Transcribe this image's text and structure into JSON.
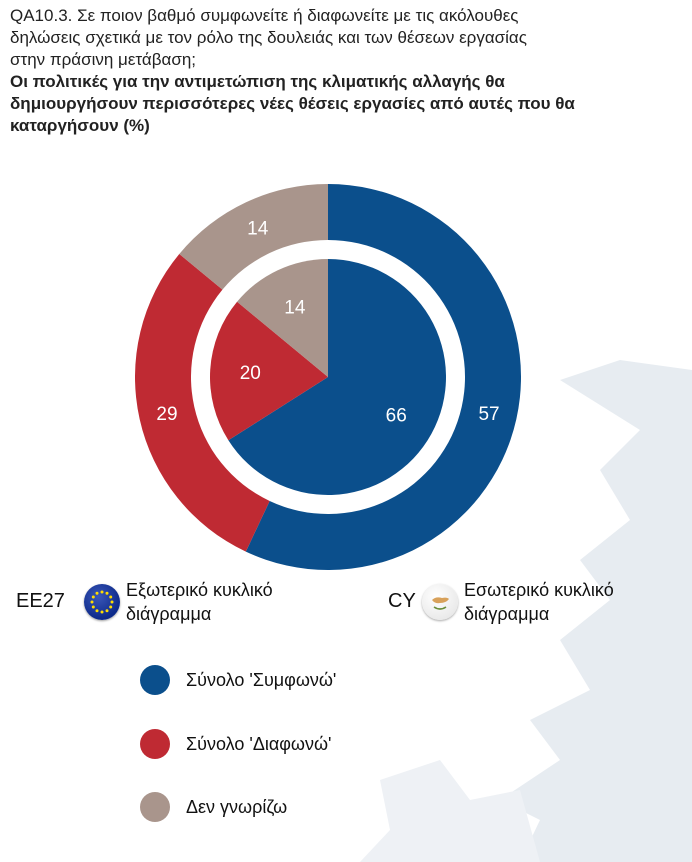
{
  "question": {
    "lines": [
      "QA10.3. Σε ποιον βαθμό συμφωνείτε ή διαφωνείτε με τις ακόλουθες",
      "δηλώσεις σχετικά με τον ρόλο της δουλειάς και των θέσεων εργασίας",
      "στην πράσινη μετάβαση;"
    ],
    "bold_lines": [
      "Οι πολιτικές για την αντιμετώπιση της κλιματικής αλλαγής θα",
      "δημιουργήσουν περισσότερες νέες θέσεις εργασίες από αυτές που θα",
      "καταργήσουν (%)"
    ]
  },
  "rings": {
    "outer": {
      "code": "EE27",
      "icon": "eu-flag-icon",
      "label_lines": [
        "Εξωτερικό κυκλικό",
        "διάγραμμα"
      ]
    },
    "inner": {
      "code": "CY",
      "icon": "cyprus-flag-icon",
      "label_lines": [
        "Εσωτερικό κυκλικό",
        "διάγραμμα"
      ]
    }
  },
  "chart_data": {
    "type": "pie",
    "variant": "double-donut",
    "categories": [
      "Σύνολο 'Συμφωνώ'",
      "Σύνολο 'Διαφωνώ'",
      "Δεν γνωρίζω"
    ],
    "colors": [
      "#0b4f8c",
      "#bf2a33",
      "#a9958c"
    ],
    "series": [
      {
        "name": "EE27",
        "ring": "outer",
        "values": [
          57,
          29,
          14
        ]
      },
      {
        "name": "CY",
        "ring": "inner",
        "values": [
          66,
          20,
          14
        ]
      }
    ]
  },
  "legend": [
    {
      "label": "Σύνολο 'Συμφωνώ'",
      "color": "#0b4f8c"
    },
    {
      "label": "Σύνολο 'Διαφωνώ'",
      "color": "#bf2a33"
    },
    {
      "label": "Δεν γνωρίζω",
      "color": "#a9958c"
    }
  ]
}
